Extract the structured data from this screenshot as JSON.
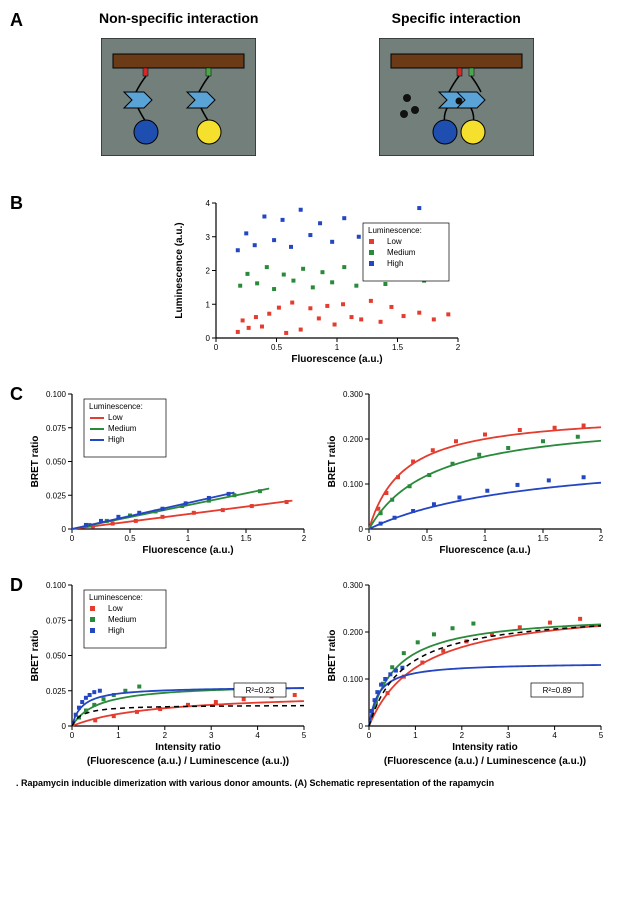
{
  "panelA": {
    "label": "A",
    "left_title": "Non-specific interaction",
    "right_title": "Specific interaction",
    "colors": {
      "bg": "#737f7a",
      "bar": "#6b3b17",
      "linker": "#000",
      "arrow": "#5aa3d6",
      "donor": "#1e4fb0",
      "acceptor": "#f5e02e",
      "tag_red": "#d62828",
      "tag_green": "#4aa84a",
      "dot": "#111"
    }
  },
  "panelB": {
    "label": "B",
    "type": "scatter",
    "xlabel": "Fluorescence (a.u.)",
    "ylabel": "Luminescence (a.u.)",
    "xlim": [
      0,
      2.0
    ],
    "ylim": [
      0,
      4
    ],
    "xticks": [
      0.0,
      0.5,
      1.0,
      1.5,
      2.0
    ],
    "yticks": [
      0,
      1,
      2,
      3,
      4
    ],
    "legend_title": "Luminescence:",
    "legend": [
      {
        "label": "Low",
        "color": "#e43c2f"
      },
      {
        "label": "Medium",
        "color": "#2a8a3b"
      },
      {
        "label": "High",
        "color": "#2446c2"
      }
    ],
    "series": {
      "low": {
        "color": "#e43c2f",
        "points": [
          [
            0.18,
            0.18
          ],
          [
            0.22,
            0.52
          ],
          [
            0.27,
            0.3
          ],
          [
            0.33,
            0.62
          ],
          [
            0.38,
            0.34
          ],
          [
            0.44,
            0.72
          ],
          [
            0.52,
            0.9
          ],
          [
            0.58,
            0.15
          ],
          [
            0.63,
            1.05
          ],
          [
            0.7,
            0.25
          ],
          [
            0.78,
            0.88
          ],
          [
            0.85,
            0.58
          ],
          [
            0.92,
            0.95
          ],
          [
            0.98,
            0.4
          ],
          [
            1.05,
            1.0
          ],
          [
            1.12,
            0.62
          ],
          [
            1.2,
            0.55
          ],
          [
            1.28,
            1.1
          ],
          [
            1.36,
            0.48
          ],
          [
            1.45,
            0.92
          ],
          [
            1.55,
            0.65
          ],
          [
            1.68,
            0.75
          ],
          [
            1.8,
            0.55
          ],
          [
            1.92,
            0.7
          ]
        ]
      },
      "medium": {
        "color": "#2a8a3b",
        "points": [
          [
            0.2,
            1.55
          ],
          [
            0.26,
            1.9
          ],
          [
            0.34,
            1.62
          ],
          [
            0.42,
            2.1
          ],
          [
            0.48,
            1.45
          ],
          [
            0.56,
            1.88
          ],
          [
            0.64,
            1.7
          ],
          [
            0.72,
            2.05
          ],
          [
            0.8,
            1.5
          ],
          [
            0.88,
            1.95
          ],
          [
            0.96,
            1.65
          ],
          [
            1.06,
            2.1
          ],
          [
            1.16,
            1.55
          ],
          [
            1.26,
            1.9
          ],
          [
            1.4,
            1.6
          ],
          [
            1.55,
            2.0
          ],
          [
            1.72,
            1.7
          ]
        ]
      },
      "high": {
        "color": "#2446c2",
        "points": [
          [
            0.18,
            2.6
          ],
          [
            0.25,
            3.1
          ],
          [
            0.32,
            2.75
          ],
          [
            0.4,
            3.6
          ],
          [
            0.48,
            2.9
          ],
          [
            0.55,
            3.5
          ],
          [
            0.62,
            2.7
          ],
          [
            0.7,
            3.8
          ],
          [
            0.78,
            3.05
          ],
          [
            0.86,
            3.4
          ],
          [
            0.96,
            2.85
          ],
          [
            1.06,
            3.55
          ],
          [
            1.18,
            3.0
          ],
          [
            1.3,
            3.3
          ],
          [
            1.45,
            2.8
          ],
          [
            1.68,
            3.85
          ]
        ]
      }
    },
    "marker_size": 2.2,
    "background": "#ffffff"
  },
  "panelC": {
    "label": "C",
    "left": {
      "type": "scatter-lines",
      "xlabel": "Fluorescence (a.u.)",
      "ylabel": "BRET ratio",
      "xlim": [
        0,
        2.0
      ],
      "ylim": [
        0,
        0.1
      ],
      "xticks": [
        0.0,
        0.5,
        1.0,
        1.5,
        2.0
      ],
      "yticks": [
        0.0,
        0.025,
        0.05,
        0.075,
        0.1
      ],
      "legend_title": "Luminescence:",
      "legend": [
        {
          "label": "Low",
          "color": "#e43c2f"
        },
        {
          "label": "Medium",
          "color": "#2a8a3b"
        },
        {
          "label": "High",
          "color": "#2446c2"
        }
      ],
      "line_width": 1.8,
      "series": {
        "low": {
          "color": "#e43c2f",
          "line": [
            [
              0,
              0.0
            ],
            [
              1.9,
              0.021
            ]
          ],
          "points": [
            [
              0.18,
              0.002
            ],
            [
              0.35,
              0.004
            ],
            [
              0.55,
              0.006
            ],
            [
              0.78,
              0.009
            ],
            [
              1.05,
              0.012
            ],
            [
              1.3,
              0.014
            ],
            [
              1.55,
              0.017
            ],
            [
              1.85,
              0.02
            ]
          ]
        },
        "medium": {
          "color": "#2a8a3b",
          "line": [
            [
              0,
              0.0
            ],
            [
              1.7,
              0.03
            ]
          ],
          "points": [
            [
              0.15,
              0.003
            ],
            [
              0.3,
              0.006
            ],
            [
              0.5,
              0.01
            ],
            [
              0.72,
              0.013
            ],
            [
              0.95,
              0.017
            ],
            [
              1.18,
              0.021
            ],
            [
              1.4,
              0.025
            ],
            [
              1.62,
              0.028
            ]
          ]
        },
        "high": {
          "color": "#2446c2",
          "line": [
            [
              0,
              0.0
            ],
            [
              1.4,
              0.027
            ]
          ],
          "points": [
            [
              0.12,
              0.003
            ],
            [
              0.25,
              0.006
            ],
            [
              0.4,
              0.009
            ],
            [
              0.58,
              0.012
            ],
            [
              0.78,
              0.015
            ],
            [
              0.98,
              0.019
            ],
            [
              1.18,
              0.023
            ],
            [
              1.35,
              0.026
            ]
          ]
        }
      }
    },
    "right": {
      "type": "scatter-saturation",
      "xlabel": "Fluorescence (a.u.)",
      "ylabel": "BRET ratio",
      "xlim": [
        0,
        2.0
      ],
      "ylim": [
        0,
        0.3
      ],
      "xticks": [
        0.0,
        0.5,
        1.0,
        1.5,
        2.0
      ],
      "yticks": [
        0.0,
        0.1,
        0.2,
        0.3
      ],
      "line_width": 1.8,
      "series": {
        "low": {
          "color": "#e43c2f",
          "bmax": 0.26,
          "kd": 0.3,
          "points": [
            [
              0.08,
              0.045
            ],
            [
              0.15,
              0.08
            ],
            [
              0.25,
              0.115
            ],
            [
              0.38,
              0.15
            ],
            [
              0.55,
              0.175
            ],
            [
              0.75,
              0.195
            ],
            [
              1.0,
              0.21
            ],
            [
              1.3,
              0.22
            ],
            [
              1.6,
              0.225
            ],
            [
              1.85,
              0.23
            ]
          ]
        },
        "medium": {
          "color": "#2a8a3b",
          "bmax": 0.25,
          "kd": 0.55,
          "points": [
            [
              0.1,
              0.035
            ],
            [
              0.2,
              0.065
            ],
            [
              0.35,
              0.095
            ],
            [
              0.52,
              0.12
            ],
            [
              0.72,
              0.145
            ],
            [
              0.95,
              0.165
            ],
            [
              1.2,
              0.18
            ],
            [
              1.5,
              0.195
            ],
            [
              1.8,
              0.205
            ]
          ]
        },
        "high": {
          "color": "#2446c2",
          "bmax": 0.175,
          "kd": 1.4,
          "points": [
            [
              0.1,
              0.012
            ],
            [
              0.22,
              0.025
            ],
            [
              0.38,
              0.04
            ],
            [
              0.56,
              0.055
            ],
            [
              0.78,
              0.07
            ],
            [
              1.02,
              0.085
            ],
            [
              1.28,
              0.098
            ],
            [
              1.55,
              0.108
            ],
            [
              1.85,
              0.115
            ]
          ]
        }
      }
    }
  },
  "panelD": {
    "label": "D",
    "left": {
      "type": "scatter-saturation",
      "xlabel": "Intensity ratio",
      "xlabel2": "(Fluorescence (a.u.) / Luminescence (a.u.))",
      "ylabel": "BRET ratio",
      "xlim": [
        0,
        5
      ],
      "ylim": [
        0,
        0.1
      ],
      "xticks": [
        0,
        1,
        2,
        3,
        4,
        5
      ],
      "yticks": [
        0.0,
        0.025,
        0.05,
        0.075,
        0.1
      ],
      "legend_title": "Luminescence:",
      "legend": [
        {
          "label": "Low",
          "color": "#e43c2f"
        },
        {
          "label": "Medium",
          "color": "#2a8a3b"
        },
        {
          "label": "High",
          "color": "#2446c2"
        }
      ],
      "r2_label": "R²=0.23",
      "global_fit": {
        "color": "#000",
        "dash": "5,4",
        "bmax": 0.015,
        "kd": 0.2
      },
      "series": {
        "low": {
          "color": "#e43c2f",
          "bmax": 0.024,
          "kd": 1.8,
          "points": [
            [
              0.5,
              0.004
            ],
            [
              0.9,
              0.007
            ],
            [
              1.4,
              0.01
            ],
            [
              1.9,
              0.012
            ],
            [
              2.5,
              0.015
            ],
            [
              3.1,
              0.017
            ],
            [
              3.7,
              0.019
            ],
            [
              4.3,
              0.021
            ],
            [
              4.8,
              0.022
            ]
          ]
        },
        "medium": {
          "color": "#2a8a3b",
          "bmax": 0.03,
          "kd": 0.55,
          "points": [
            [
              0.15,
              0.006
            ],
            [
              0.3,
              0.011
            ],
            [
              0.48,
              0.015
            ],
            [
              0.68,
              0.019
            ],
            [
              0.9,
              0.022
            ],
            [
              1.15,
              0.025
            ],
            [
              1.45,
              0.028
            ]
          ]
        },
        "high": {
          "color": "#2446c2",
          "bmax": 0.028,
          "kd": 0.22,
          "points": [
            [
              0.08,
              0.008
            ],
            [
              0.15,
              0.013
            ],
            [
              0.22,
              0.017
            ],
            [
              0.3,
              0.02
            ],
            [
              0.38,
              0.022
            ],
            [
              0.48,
              0.024
            ],
            [
              0.6,
              0.025
            ]
          ]
        }
      }
    },
    "right": {
      "type": "scatter-saturation",
      "xlabel": "Intensity ratio",
      "xlabel2": "(Fluorescence (a.u.) / Luminescence (a.u.))",
      "ylabel": "BRET ratio",
      "xlim": [
        0,
        5
      ],
      "ylim": [
        0,
        0.3
      ],
      "xticks": [
        0,
        1,
        2,
        3,
        4,
        5
      ],
      "yticks": [
        0.0,
        0.1,
        0.2,
        0.3
      ],
      "r2_label": "R²=0.89",
      "global_fit": {
        "color": "#000",
        "dash": "5,4",
        "bmax": 0.245,
        "kd": 0.75
      },
      "series": {
        "low": {
          "color": "#e43c2f",
          "bmax": 0.26,
          "kd": 1.1,
          "points": [
            [
              0.4,
              0.07
            ],
            [
              0.75,
              0.105
            ],
            [
              1.15,
              0.135
            ],
            [
              1.6,
              0.16
            ],
            [
              2.1,
              0.18
            ],
            [
              2.65,
              0.195
            ],
            [
              3.25,
              0.21
            ],
            [
              3.9,
              0.22
            ],
            [
              4.55,
              0.228
            ]
          ]
        },
        "medium": {
          "color": "#2a8a3b",
          "bmax": 0.24,
          "kd": 0.55,
          "points": [
            [
              0.15,
              0.05
            ],
            [
              0.3,
              0.09
            ],
            [
              0.5,
              0.125
            ],
            [
              0.75,
              0.155
            ],
            [
              1.05,
              0.178
            ],
            [
              1.4,
              0.195
            ],
            [
              1.8,
              0.208
            ],
            [
              2.25,
              0.218
            ]
          ]
        },
        "high": {
          "color": "#2446c2",
          "bmax": 0.135,
          "kd": 0.2,
          "points": [
            [
              0.06,
              0.032
            ],
            [
              0.12,
              0.055
            ],
            [
              0.18,
              0.072
            ],
            [
              0.26,
              0.088
            ],
            [
              0.35,
              0.1
            ],
            [
              0.46,
              0.11
            ],
            [
              0.58,
              0.118
            ],
            [
              0.72,
              0.124
            ]
          ]
        }
      }
    }
  },
  "caption": ". Rapamycin inducible dimerization with various donor amounts. (A) Schematic representation of the rapamycin"
}
